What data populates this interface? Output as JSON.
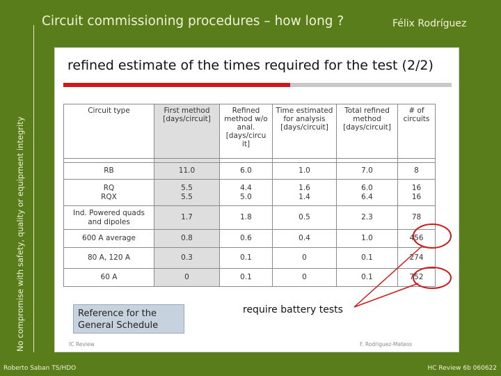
{
  "frame": {
    "title": "Circuit commissioning procedures – how long ?",
    "author": "Félix Rodríguez",
    "side_text": "No compromise with safety, quality or equipment integrity",
    "footer_left": "Roberto Saban TS/HDO",
    "footer_right": "HC Review 6b 060622"
  },
  "slide": {
    "heading": "refined estimate of the times required for the  test (2/2)",
    "reference_box": "Reference for the\nGeneral Schedule",
    "annotation": "require battery tests",
    "footer_left": "IC Review",
    "footer_right": "F. Rodriguez-Mateos",
    "accent_color": "#cc1a1a"
  },
  "table": {
    "headers": [
      "Circuit type",
      "First method [days/circuit]",
      "Refined method w/o anal. [days/circu it]",
      "Time estimated for analysis [days/circuit]",
      "Total refined method [days/circuit]",
      "# of circuits"
    ],
    "rows": [
      {
        "type": "RB",
        "first": "11.0",
        "refined": "6.0",
        "analysis": "1.0",
        "total": "7.0",
        "count": "8"
      },
      {
        "type": "RQ\nRQX",
        "first": "5.5\n5.5",
        "refined": "4.4\n5.0",
        "analysis": "1.6\n1.4",
        "total": "6.0\n6.4",
        "count": "16\n16"
      },
      {
        "type": "Ind. Powered quads and dipoles",
        "first": "1.7",
        "refined": "1.8",
        "analysis": "0.5",
        "total": "2.3",
        "count": "78"
      },
      {
        "type": "600 A average",
        "first": "0.8",
        "refined": "0.6",
        "analysis": "0.4",
        "total": "1.0",
        "count": "456"
      },
      {
        "type": "80 A, 120 A",
        "first": "0.3",
        "refined": "0.1",
        "analysis": "0",
        "total": "0.1",
        "count": "274"
      },
      {
        "type": "60 A",
        "first": "0",
        "refined": "0.1",
        "analysis": "0",
        "total": "0.1",
        "count": "752"
      }
    ]
  }
}
